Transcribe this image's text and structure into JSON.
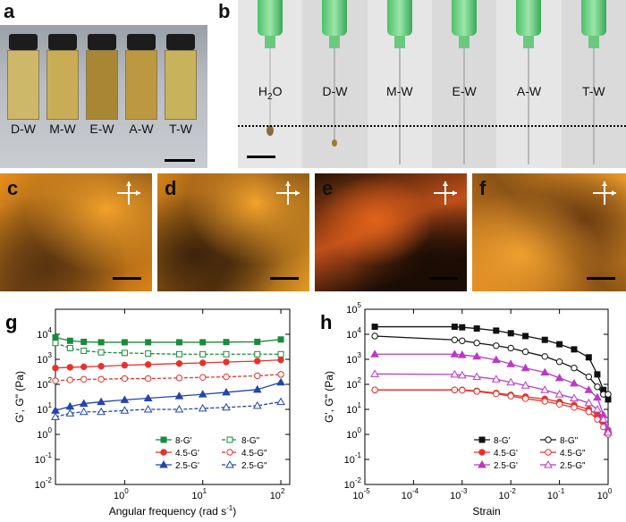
{
  "panels": {
    "a": {
      "label": "a",
      "vials": [
        "D-W",
        "M-W",
        "E-W",
        "A-W",
        "T-W"
      ]
    },
    "b": {
      "label": "b",
      "needles": [
        "H2O",
        "D-W",
        "M-W",
        "E-W",
        "A-W",
        "T-W"
      ]
    },
    "c": {
      "label": "c"
    },
    "d": {
      "label": "d"
    },
    "e": {
      "label": "e"
    },
    "f": {
      "label": "f"
    }
  },
  "chart_data": [
    {
      "panel_label": "g",
      "type": "line",
      "xlabel": "Angular frequency (rad s-1)",
      "ylabel": "G', G\" (Pa)",
      "x_scale": "log",
      "y_scale": "log",
      "xlim": [
        0.13,
        130
      ],
      "ylim": [
        0.01,
        100000
      ],
      "x_ticks": [
        "10^0",
        "10^1",
        "10^2"
      ],
      "y_ticks": [
        "10^-2",
        "10^-1",
        "10^0",
        "10^1",
        "10^2",
        "10^3",
        "10^4"
      ],
      "legend_position": "bottom-right",
      "legend_labels": [
        "8-G'",
        "8-G\"",
        "4.5-G'",
        "4.5-G\"",
        "2.5-G'",
        "2.5-G\""
      ],
      "series": [
        {
          "name": "8-G'",
          "color": "#1a8a3c",
          "marker": "square-filled",
          "line": "solid",
          "x": [
            0.13,
            0.2,
            0.3,
            0.5,
            1,
            2,
            5,
            10,
            20,
            50,
            100
          ],
          "y": [
            7500,
            5500,
            5000,
            4800,
            4800,
            4800,
            4800,
            4800,
            4900,
            5000,
            6200
          ]
        },
        {
          "name": "8-G\"",
          "color": "#1a8a3c",
          "marker": "square-open",
          "line": "dashed",
          "x": [
            0.13,
            0.2,
            0.3,
            0.5,
            1,
            2,
            5,
            10,
            20,
            50,
            100
          ],
          "y": [
            4500,
            2800,
            2200,
            1900,
            1800,
            1700,
            1600,
            1600,
            1600,
            1600,
            1600
          ]
        },
        {
          "name": "4.5-G'",
          "color": "#e8312c",
          "marker": "circle-filled",
          "line": "solid",
          "x": [
            0.13,
            0.2,
            0.3,
            0.5,
            1,
            2,
            5,
            10,
            20,
            50,
            100
          ],
          "y": [
            450,
            480,
            500,
            530,
            580,
            620,
            680,
            720,
            780,
            850,
            950
          ]
        },
        {
          "name": "4.5-G\"",
          "color": "#e8312c",
          "marker": "circle-open",
          "line": "dashed",
          "x": [
            0.13,
            0.2,
            0.3,
            0.5,
            1,
            2,
            5,
            10,
            20,
            50,
            100
          ],
          "y": [
            140,
            150,
            160,
            160,
            170,
            170,
            180,
            190,
            200,
            220,
            250
          ]
        },
        {
          "name": "2.5-G'",
          "color": "#2545a8",
          "marker": "triangle-filled",
          "line": "solid",
          "x": [
            0.13,
            0.2,
            0.3,
            0.5,
            1,
            2,
            5,
            10,
            20,
            50,
            100
          ],
          "y": [
            9,
            13,
            17,
            20,
            24,
            28,
            34,
            40,
            48,
            62,
            120
          ]
        },
        {
          "name": "2.5-G\"",
          "color": "#2545a8",
          "marker": "triangle-open",
          "line": "dashed",
          "x": [
            0.13,
            0.2,
            0.3,
            0.5,
            1,
            2,
            5,
            10,
            20,
            50,
            100
          ],
          "y": [
            5,
            7,
            8,
            8,
            9,
            10,
            10,
            11,
            12,
            14,
            20
          ]
        }
      ]
    },
    {
      "panel_label": "h",
      "type": "line",
      "xlabel": "Strain",
      "ylabel": "G', G\" (Pa)",
      "x_scale": "log",
      "y_scale": "log",
      "xlim": [
        1e-05,
        1
      ],
      "ylim": [
        0.01,
        100000
      ],
      "x_ticks": [
        "10^-5",
        "10^-4",
        "10^-3",
        "10^-2",
        "10^-1",
        "10^0"
      ],
      "y_ticks": [
        "10^-2",
        "10^-1",
        "10^0",
        "10^1",
        "10^2",
        "10^3",
        "10^4",
        "10^5"
      ],
      "legend_position": "bottom-right",
      "legend_labels": [
        "8-G'",
        "8-G\"",
        "4.5-G'",
        "4.5-G\"",
        "2.5-G'",
        "2.5-G\""
      ],
      "series": [
        {
          "name": "8-G'",
          "color": "#111111",
          "marker": "square-filled",
          "line": "solid",
          "x": [
            1.6e-05,
            0.0007,
            0.001,
            0.002,
            0.005,
            0.01,
            0.02,
            0.05,
            0.1,
            0.2,
            0.4,
            0.6,
            0.8,
            1
          ],
          "y": [
            20000,
            20000,
            19000,
            17000,
            14000,
            11000,
            8500,
            6000,
            4000,
            2500,
            1200,
            250,
            60,
            25
          ]
        },
        {
          "name": "8-G\"",
          "color": "#111111",
          "marker": "circle-open",
          "line": "solid",
          "x": [
            1.6e-05,
            0.0007,
            0.001,
            0.002,
            0.005,
            0.01,
            0.02,
            0.05,
            0.1,
            0.2,
            0.4,
            0.6,
            0.8,
            1
          ],
          "y": [
            8500,
            6000,
            5500,
            4500,
            3500,
            2800,
            2000,
            1300,
            800,
            450,
            200,
            80,
            40,
            40
          ]
        },
        {
          "name": "4.5-G'",
          "color": "#e8312c",
          "marker": "circle-filled",
          "line": "solid",
          "x": [
            1.6e-05,
            0.0007,
            0.001,
            0.002,
            0.005,
            0.01,
            0.02,
            0.05,
            0.1,
            0.2,
            0.4,
            0.6,
            0.8,
            1
          ],
          "y": [
            60,
            60,
            60,
            55,
            45,
            38,
            32,
            26,
            20,
            15,
            10,
            6,
            3,
            1.5
          ]
        },
        {
          "name": "4.5-G\"",
          "color": "#e8312c",
          "marker": "circle-open",
          "line": "solid",
          "x": [
            1.6e-05,
            0.0007,
            0.001,
            0.002,
            0.005,
            0.01,
            0.02,
            0.05,
            0.1,
            0.2,
            0.4,
            0.6,
            0.8,
            1
          ],
          "y": [
            60,
            60,
            58,
            52,
            42,
            34,
            27,
            21,
            16,
            12,
            8,
            4,
            2,
            1
          ]
        },
        {
          "name": "2.5-G'",
          "color": "#b93ac4",
          "marker": "triangle-filled",
          "line": "solid",
          "x": [
            1.6e-05,
            0.0007,
            0.001,
            0.002,
            0.005,
            0.01,
            0.02,
            0.05,
            0.1,
            0.2,
            0.4,
            0.6,
            0.8,
            1
          ],
          "y": [
            1600,
            1600,
            1500,
            1300,
            950,
            650,
            450,
            300,
            180,
            110,
            60,
            30,
            6,
            1.5
          ]
        },
        {
          "name": "2.5-G\"",
          "color": "#b93ac4",
          "marker": "triangle-open",
          "line": "solid",
          "x": [
            1.6e-05,
            0.0007,
            0.001,
            0.002,
            0.005,
            0.01,
            0.02,
            0.05,
            0.1,
            0.2,
            0.4,
            0.6,
            0.8,
            1
          ],
          "y": [
            260,
            250,
            230,
            200,
            160,
            120,
            90,
            60,
            40,
            28,
            18,
            10,
            4,
            1.2
          ]
        }
      ]
    }
  ]
}
